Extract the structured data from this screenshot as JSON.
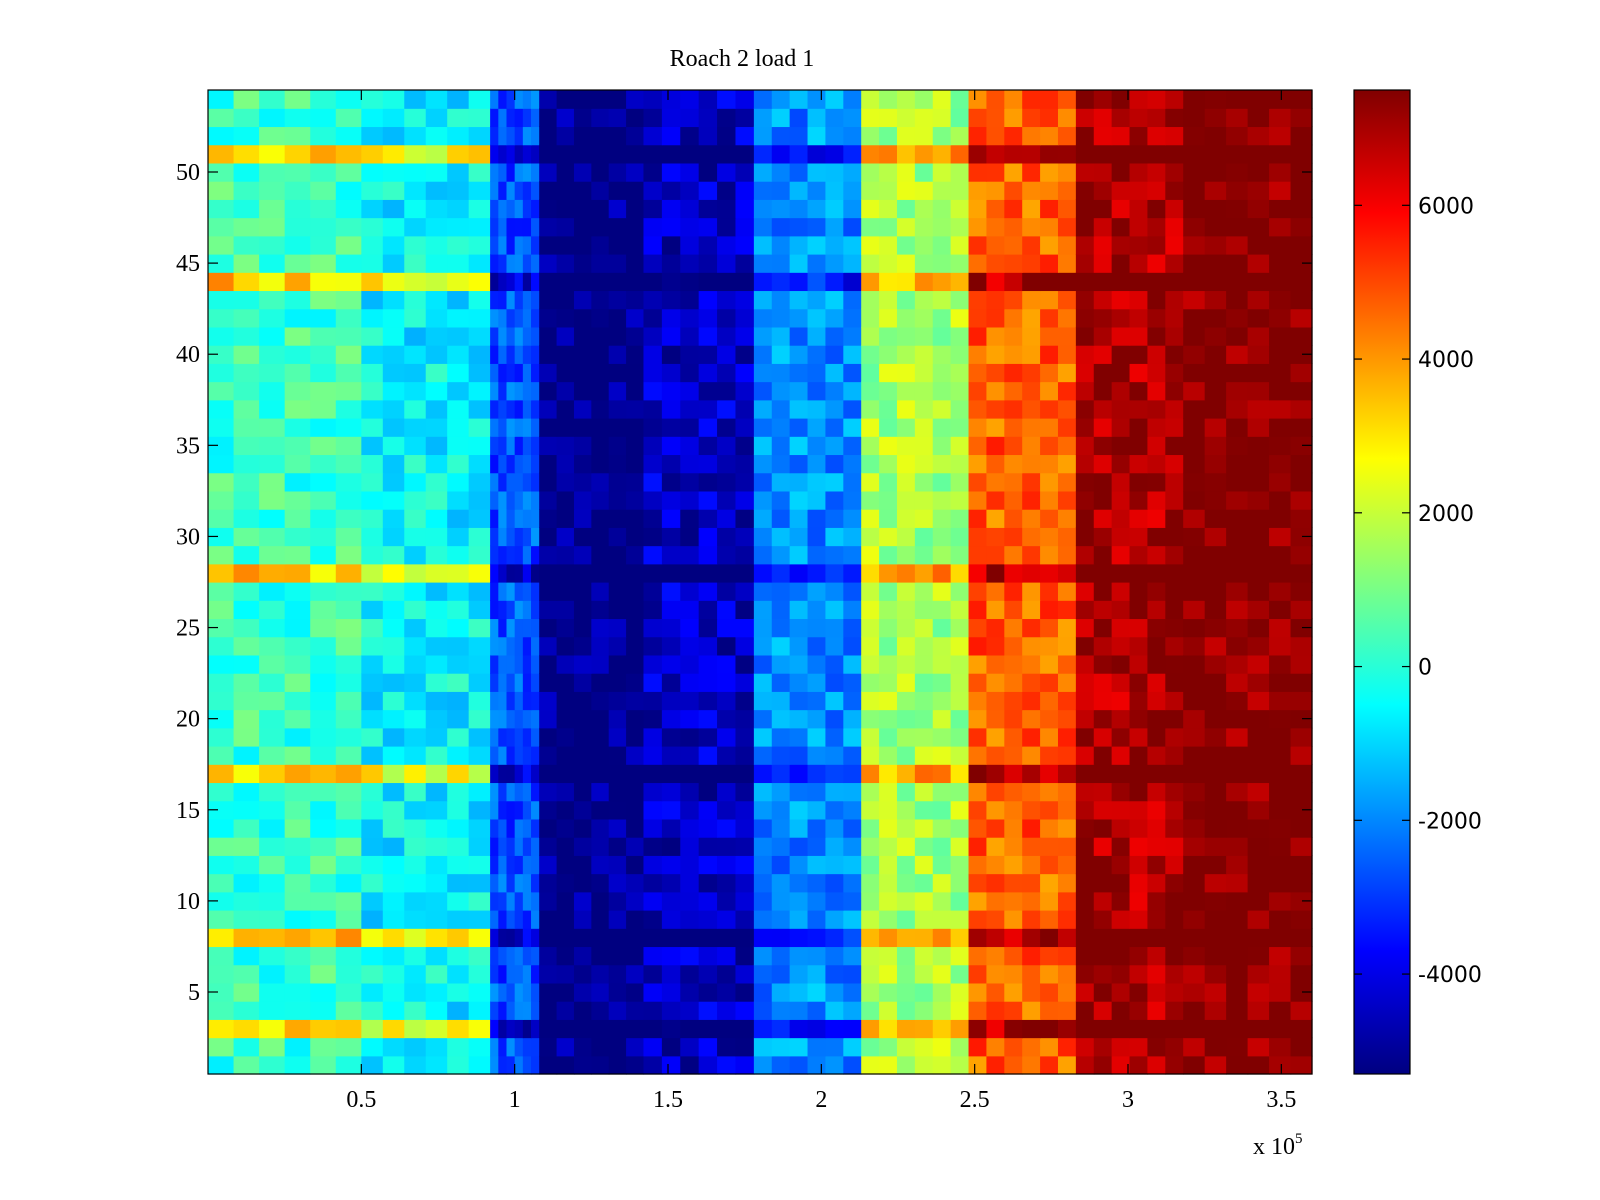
{
  "chart_data": {
    "type": "heatmap",
    "title": "Roach 2 load 1",
    "xlabel": "",
    "ylabel": "",
    "x_multiplier_label": "x 10",
    "x_multiplier_exponent": "5",
    "xlim": [
      0,
      3.6
    ],
    "ylim": [
      0.5,
      54.5
    ],
    "x_ticks": [
      0.5,
      1,
      1.5,
      2,
      2.5,
      3,
      3.5
    ],
    "x_tick_labels": [
      "0.5",
      "1",
      "1.5",
      "2",
      "2.5",
      "3",
      "3.5"
    ],
    "y_ticks": [
      5,
      10,
      15,
      20,
      25,
      30,
      35,
      40,
      45,
      50
    ],
    "y_tick_labels": [
      "5",
      "10",
      "15",
      "20",
      "25",
      "30",
      "35",
      "40",
      "45",
      "50"
    ],
    "rows": 54,
    "colormap": "jet",
    "color_range": [
      -5300,
      7500
    ],
    "colorbar": {
      "ticks": [
        -4000,
        -2000,
        0,
        2000,
        4000,
        6000
      ],
      "tick_labels": [
        "-4000",
        "-2000",
        "0",
        "2000",
        "4000",
        "6000"
      ]
    },
    "column_bands": [
      {
        "x_start": 0.0,
        "x_end": 0.5,
        "approx_value": 200
      },
      {
        "x_start": 0.5,
        "x_end": 0.92,
        "approx_value": -600
      },
      {
        "x_start": 0.92,
        "x_end": 1.08,
        "approx_value": -2700
      },
      {
        "x_start": 1.08,
        "x_end": 1.42,
        "approx_value": -5200
      },
      {
        "x_start": 1.42,
        "x_end": 1.78,
        "approx_value": -4400
      },
      {
        "x_start": 1.78,
        "x_end": 2.13,
        "approx_value": -1900
      },
      {
        "x_start": 2.13,
        "x_end": 2.48,
        "approx_value": 1600
      },
      {
        "x_start": 2.48,
        "x_end": 2.83,
        "approx_value": 4700
      },
      {
        "x_start": 2.83,
        "x_end": 3.18,
        "approx_value": 7000
      },
      {
        "x_start": 3.18,
        "x_end": 3.6,
        "approx_value": 7500
      }
    ],
    "special_rows": [
      3,
      8,
      17,
      28,
      44,
      51
    ]
  }
}
